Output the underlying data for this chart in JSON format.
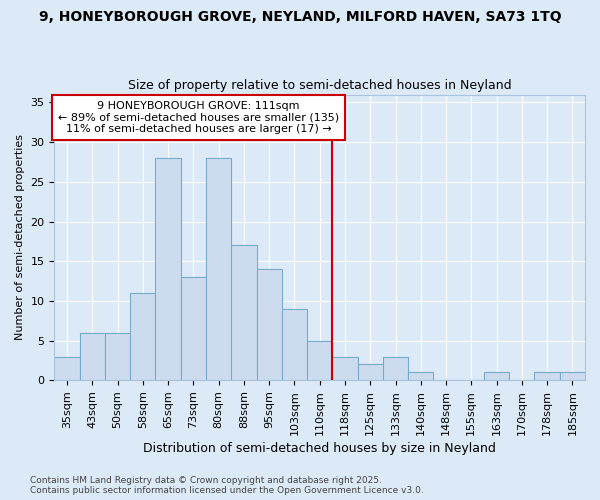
{
  "title_line1": "9, HONEYBOROUGH GROVE, NEYLAND, MILFORD HAVEN, SA73 1TQ",
  "title_line2": "Size of property relative to semi-detached houses in Neyland",
  "xlabel": "Distribution of semi-detached houses by size in Neyland",
  "ylabel": "Number of semi-detached properties",
  "bar_labels": [
    "35sqm",
    "43sqm",
    "50sqm",
    "58sqm",
    "65sqm",
    "73sqm",
    "80sqm",
    "88sqm",
    "95sqm",
    "103sqm",
    "110sqm",
    "118sqm",
    "125sqm",
    "133sqm",
    "140sqm",
    "148sqm",
    "155sqm",
    "163sqm",
    "170sqm",
    "178sqm",
    "185sqm"
  ],
  "bar_values": [
    3,
    6,
    6,
    11,
    28,
    13,
    28,
    17,
    14,
    9,
    5,
    3,
    2,
    3,
    1,
    0,
    0,
    1,
    0,
    1,
    1
  ],
  "bar_color": "#ccdcee",
  "bar_edge_color": "#7aaaca",
  "vline_position": 10.5,
  "vline_color": "#cc0000",
  "annotation_text": "9 HONEYBOROUGH GROVE: 111sqm\n← 89% of semi-detached houses are smaller (135)\n11% of semi-detached houses are larger (17) →",
  "annotation_box_facecolor": "#ffffff",
  "annotation_box_edgecolor": "#cc0000",
  "footnote": "Contains HM Land Registry data © Crown copyright and database right 2025.\nContains public sector information licensed under the Open Government Licence v3.0.",
  "ylim": [
    0,
    36
  ],
  "yticks": [
    0,
    5,
    10,
    15,
    20,
    25,
    30,
    35
  ],
  "bg_color": "#dce9f7",
  "grid_color": "#ffffff",
  "title_fontsize": 10,
  "subtitle_fontsize": 9,
  "ylabel_fontsize": 8,
  "xlabel_fontsize": 9,
  "tick_fontsize": 8,
  "annot_fontsize": 8,
  "footnote_fontsize": 6.5
}
